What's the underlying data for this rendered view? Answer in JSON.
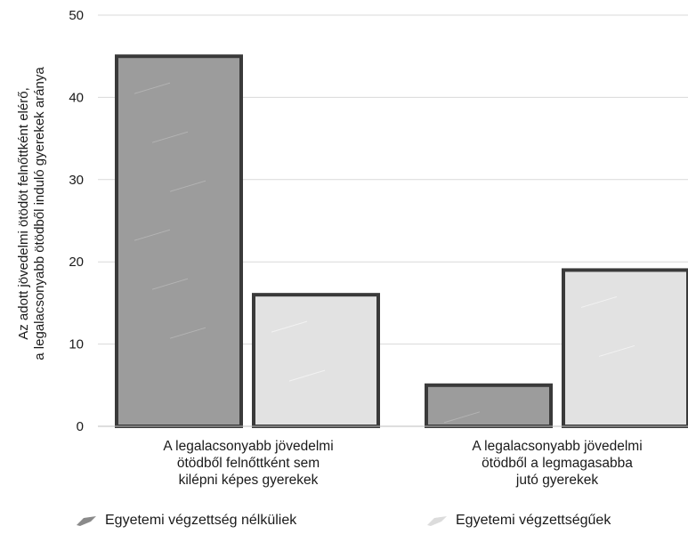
{
  "chart_data": {
    "type": "bar",
    "ylabel_lines": [
      "Az adott jövedelmi ötödöt felnőttként elérő,",
      "a legalacsonyabb ötödből induló gyerekek aránya"
    ],
    "xlabel": "",
    "ylim": [
      0,
      50
    ],
    "yticks": [
      "0",
      "10",
      "20",
      "30",
      "40",
      "50"
    ],
    "grid": true,
    "categories": [
      "A legalacsonyabb jövedelmi\nötödből felnőttként sem\nkilépni képes gyerekek",
      "A legalacsonyabb jövedelmi\nötödből a legmagasabba\njutó gyerekek"
    ],
    "series": [
      {
        "name": "Egyetemi végzettség nélküliek",
        "values": [
          45,
          5
        ],
        "color": "#9c9c9c"
      },
      {
        "name": "Egyetemi végzettségűek",
        "values": [
          16,
          19
        ],
        "color": "#e2e2e2"
      }
    ],
    "legend_position": "bottom"
  }
}
